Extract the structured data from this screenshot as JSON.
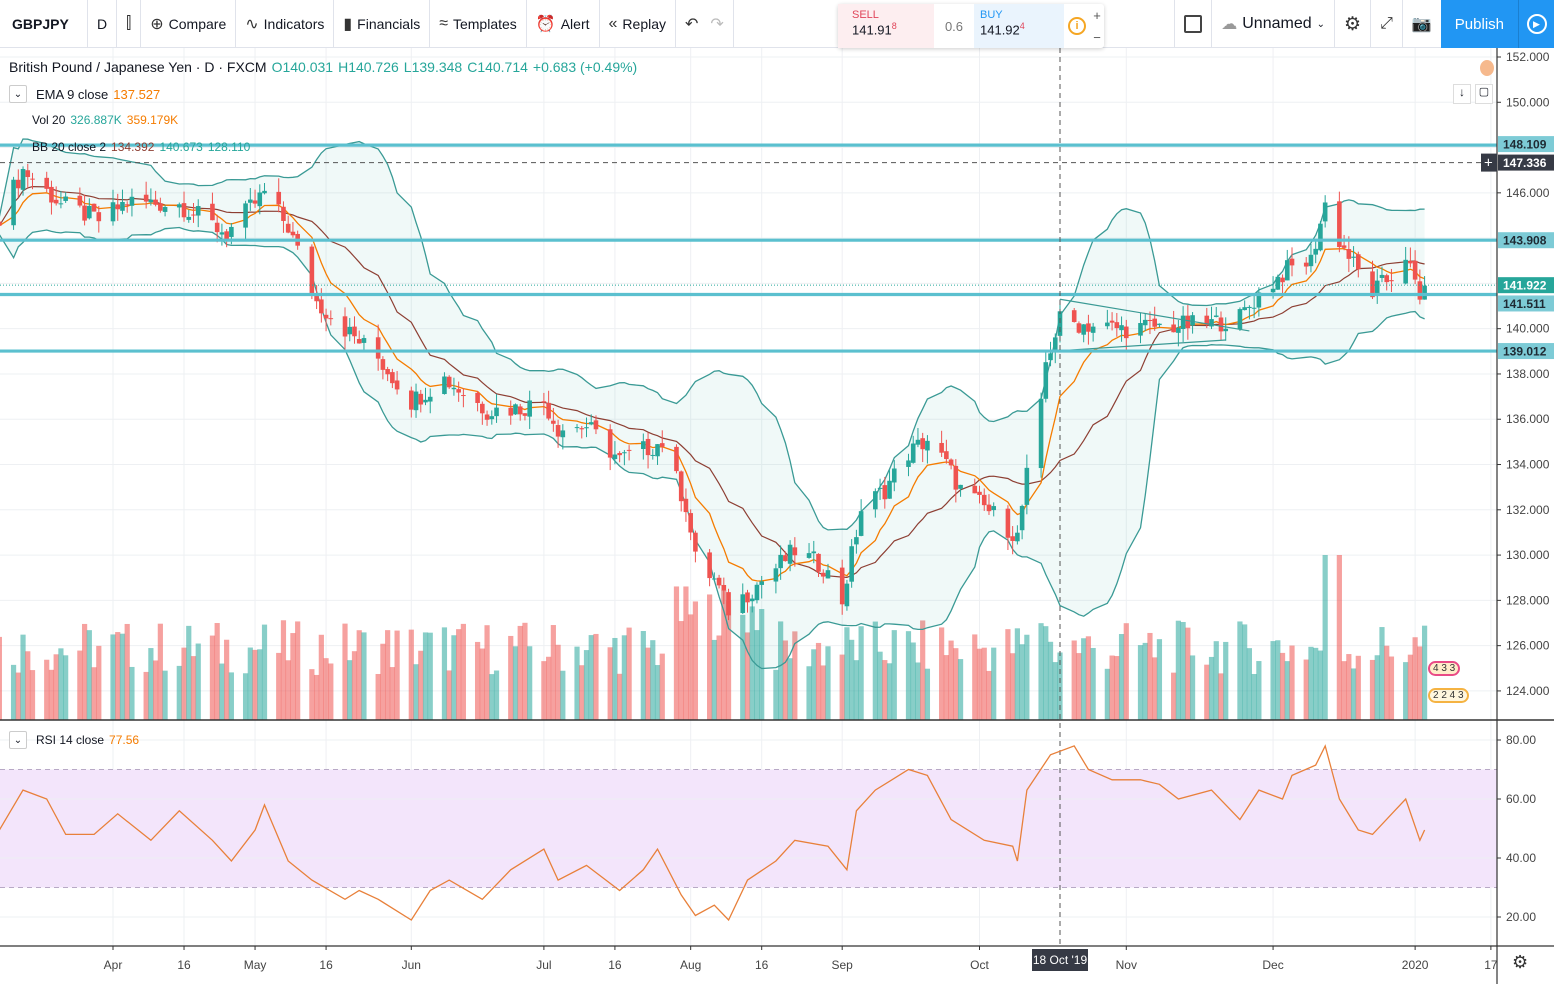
{
  "toolbar": {
    "symbol": "GBPJPY",
    "interval": "D",
    "compare": "Compare",
    "indicators": "Indicators",
    "financials": "Financials",
    "templates": "Templates",
    "alert": "Alert",
    "replay": "Replay",
    "layout_name": "Unnamed",
    "publish": "Publish"
  },
  "trade_panel": {
    "sell_label": "SELL",
    "sell_price": "141.91",
    "sell_pip": "8",
    "spread": "0.6",
    "buy_label": "BUY",
    "buy_price": "141.92",
    "buy_pip": "4"
  },
  "legend": {
    "title": "British Pound / Japanese Yen · D · FXCM",
    "open": "O140.031",
    "high": "H140.726",
    "low": "L139.348",
    "close": "C140.714",
    "change": "+0.683 (+0.49%)",
    "ema": {
      "label": "EMA 9 close",
      "value": "137.527"
    },
    "vol": {
      "label": "Vol 20",
      "value1": "326.887K",
      "value2": "359.179K"
    },
    "bb": {
      "label": "BB 20 close 2",
      "basis": "134.392",
      "upper": "140.673",
      "lower": "128.110"
    },
    "rsi": {
      "label": "RSI 14 close",
      "value": "77.56"
    }
  },
  "colors": {
    "up": "#26a69a",
    "down": "#ef5350",
    "ema": "#f57c00",
    "bb_basis": "#8d3f33",
    "bb_band": "#3a9a95",
    "levels": "#5bc0cf",
    "rsi": "#e8803a",
    "rsi_band": "#f3e5fb",
    "accent": "#2196f3"
  },
  "events": {
    "row1": "4 3 3",
    "row2": "2 2 4 3"
  },
  "chart_data": [
    {
      "type": "candlestick",
      "title": "British Pound / Japanese Yen · D · FXCM",
      "ylim": [
        123,
        152.5
      ],
      "yticks": [
        "152.000",
        "150.000",
        "146.000",
        "140.000",
        "138.000",
        "136.000",
        "134.000",
        "132.000",
        "130.000",
        "128.000",
        "126.000",
        "124.000"
      ],
      "ytick_values": [
        152,
        150,
        146,
        140,
        138,
        136,
        134,
        132,
        130,
        128,
        126,
        124
      ],
      "xticks": [
        {
          "label": "Apr",
          "date": "2019-04-01"
        },
        {
          "label": "16",
          "date": "2019-04-16"
        },
        {
          "label": "May",
          "date": "2019-05-01"
        },
        {
          "label": "16",
          "date": "2019-05-16"
        },
        {
          "label": "Jun",
          "date": "2019-06-03"
        },
        {
          "label": "Jul",
          "date": "2019-07-01"
        },
        {
          "label": "16",
          "date": "2019-07-16"
        },
        {
          "label": "Aug",
          "date": "2019-08-01"
        },
        {
          "label": "16",
          "date": "2019-08-16"
        },
        {
          "label": "Sep",
          "date": "2019-09-02"
        },
        {
          "label": "Oct",
          "date": "2019-10-01"
        },
        {
          "label": "Nov",
          "date": "2019-11-01"
        },
        {
          "label": "Dec",
          "date": "2019-12-02"
        },
        {
          "label": "2020",
          "date": "2020-01-01"
        },
        {
          "label": "17",
          "date": "2020-01-17"
        }
      ],
      "crosshair": {
        "date_label": "18 Oct '19",
        "date": "2019-10-18",
        "price": "147.336"
      },
      "last_price": "141.922",
      "horizontal_levels": [
        "148.109",
        "143.908",
        "141.511",
        "139.012"
      ],
      "close_series": [
        [
          "2019-03-08",
          145.0
        ],
        [
          "2019-03-13",
          147.0
        ],
        [
          "2019-03-21",
          145.5
        ],
        [
          "2019-03-29",
          144.8
        ],
        [
          "2019-04-04",
          145.6
        ],
        [
          "2019-04-15",
          145.5
        ],
        [
          "2019-04-25",
          144.2
        ],
        [
          "2019-05-03",
          146.0
        ],
        [
          "2019-05-08",
          144.5
        ],
        [
          "2019-05-14",
          141.2
        ],
        [
          "2019-05-21",
          139.8
        ],
        [
          "2019-05-27",
          138.7
        ],
        [
          "2019-06-03",
          136.8
        ],
        [
          "2019-06-10",
          137.8
        ],
        [
          "2019-06-19",
          136.4
        ],
        [
          "2019-06-26",
          136.5
        ],
        [
          "2019-07-01",
          136.8
        ],
        [
          "2019-07-04",
          135.6
        ],
        [
          "2019-07-10",
          135.7
        ],
        [
          "2019-07-17",
          134.2
        ],
        [
          "2019-07-26",
          135.0
        ],
        [
          "2019-07-31",
          132.2
        ],
        [
          "2019-08-02",
          129.8
        ],
        [
          "2019-08-06",
          128.9
        ],
        [
          "2019-08-09",
          127.6
        ],
        [
          "2019-08-14",
          128.5
        ],
        [
          "2019-08-23",
          130.2
        ],
        [
          "2019-08-29",
          129.5
        ],
        [
          "2019-09-02",
          128.0
        ],
        [
          "2019-09-06",
          132.0
        ],
        [
          "2019-09-11",
          132.9
        ],
        [
          "2019-09-16",
          134.5
        ],
        [
          "2019-09-20",
          135.1
        ],
        [
          "2019-09-24",
          134.0
        ],
        [
          "2019-09-27",
          132.9
        ],
        [
          "2019-10-04",
          131.8
        ],
        [
          "2019-10-09",
          130.8
        ],
        [
          "2019-10-11",
          133.5
        ],
        [
          "2019-10-14",
          136.5
        ],
        [
          "2019-10-15",
          138.5
        ],
        [
          "2019-10-18",
          140.4
        ],
        [
          "2019-10-22",
          140.2
        ],
        [
          "2019-10-31",
          140.0
        ],
        [
          "2019-11-08",
          140.1
        ],
        [
          "2019-11-18",
          140.2
        ],
        [
          "2019-11-25",
          140.5
        ],
        [
          "2019-11-29",
          141.5
        ],
        [
          "2019-12-05",
          142.6
        ],
        [
          "2019-12-10",
          143.0
        ],
        [
          "2019-12-13",
          145.5
        ],
        [
          "2019-12-16",
          143.9
        ],
        [
          "2019-12-20",
          142.5
        ],
        [
          "2019-12-23",
          141.6
        ],
        [
          "2019-12-27",
          142.3
        ],
        [
          "2019-12-30",
          143.3
        ],
        [
          "2020-01-02",
          141.2
        ],
        [
          "2020-01-03",
          141.9
        ]
      ]
    },
    {
      "type": "line",
      "title": "RSI 14 close",
      "ylim": [
        12,
        86
      ],
      "yticks": [
        "80.00",
        "60.00",
        "40.00",
        "20.00"
      ],
      "ytick_values": [
        80,
        60,
        40,
        20
      ],
      "bands": [
        30,
        70
      ],
      "series": [
        [
          "2019-03-08",
          49.5
        ],
        [
          "2019-03-13",
          63
        ],
        [
          "2019-03-18",
          60
        ],
        [
          "2019-03-22",
          48
        ],
        [
          "2019-03-28",
          48
        ],
        [
          "2019-04-02",
          55
        ],
        [
          "2019-04-09",
          46
        ],
        [
          "2019-04-15",
          56
        ],
        [
          "2019-04-22",
          46
        ],
        [
          "2019-04-26",
          39
        ],
        [
          "2019-05-01",
          49.5
        ],
        [
          "2019-05-03",
          58
        ],
        [
          "2019-05-08",
          39
        ],
        [
          "2019-05-13",
          32.5
        ],
        [
          "2019-05-20",
          26
        ],
        [
          "2019-05-23",
          29
        ],
        [
          "2019-05-27",
          26
        ],
        [
          "2019-06-03",
          19
        ],
        [
          "2019-06-07",
          29
        ],
        [
          "2019-06-11",
          32.5
        ],
        [
          "2019-06-18",
          26
        ],
        [
          "2019-06-24",
          36
        ],
        [
          "2019-07-01",
          43
        ],
        [
          "2019-07-04",
          32.5
        ],
        [
          "2019-07-10",
          37.5
        ],
        [
          "2019-07-17",
          29
        ],
        [
          "2019-07-22",
          36
        ],
        [
          "2019-07-25",
          43
        ],
        [
          "2019-07-30",
          27.5
        ],
        [
          "2019-08-02",
          20.5
        ],
        [
          "2019-08-06",
          24
        ],
        [
          "2019-08-09",
          19
        ],
        [
          "2019-08-13",
          32.5
        ],
        [
          "2019-08-19",
          39
        ],
        [
          "2019-08-23",
          46
        ],
        [
          "2019-08-30",
          44
        ],
        [
          "2019-09-03",
          36
        ],
        [
          "2019-09-05",
          56
        ],
        [
          "2019-09-09",
          63
        ],
        [
          "2019-09-16",
          70
        ],
        [
          "2019-09-20",
          68
        ],
        [
          "2019-09-25",
          53
        ],
        [
          "2019-10-02",
          46
        ],
        [
          "2019-10-08",
          44
        ],
        [
          "2019-10-09",
          39
        ],
        [
          "2019-10-11",
          63
        ],
        [
          "2019-10-16",
          75
        ],
        [
          "2019-10-21",
          78
        ],
        [
          "2019-10-24",
          70
        ],
        [
          "2019-10-29",
          66.5
        ],
        [
          "2019-11-04",
          66.5
        ],
        [
          "2019-11-08",
          65
        ],
        [
          "2019-11-12",
          60
        ],
        [
          "2019-11-19",
          63
        ],
        [
          "2019-11-25",
          53
        ],
        [
          "2019-11-29",
          63
        ],
        [
          "2019-12-04",
          60
        ],
        [
          "2019-12-06",
          68
        ],
        [
          "2019-12-11",
          71.5
        ],
        [
          "2019-12-13",
          78
        ],
        [
          "2019-12-16",
          60
        ],
        [
          "2019-12-20",
          49.5
        ],
        [
          "2019-12-23",
          48
        ],
        [
          "2019-12-30",
          60
        ],
        [
          "2020-01-02",
          46
        ],
        [
          "2020-01-03",
          49.5
        ]
      ]
    }
  ]
}
